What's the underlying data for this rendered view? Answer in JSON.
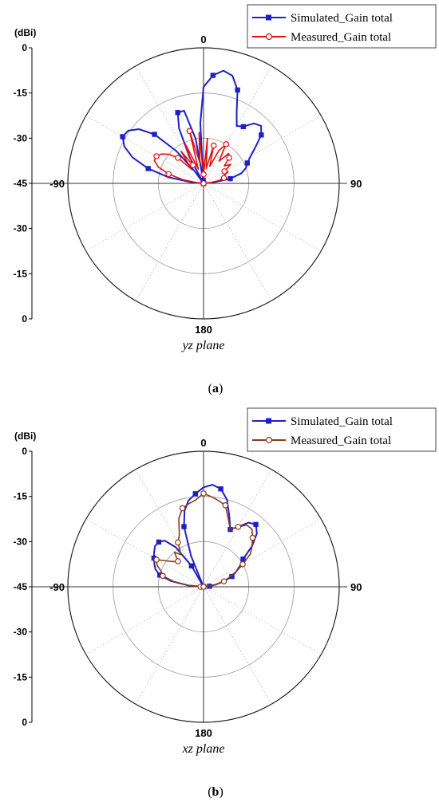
{
  "chart_data": [
    {
      "type": "polar",
      "panel_label": "a",
      "unit_label": "(dBi)",
      "plane_label": "yz plane",
      "radial_ticks": [
        "0",
        "-15",
        "-30",
        "-45"
      ],
      "radial_ticks_lower": [
        "-30",
        "-15",
        "0"
      ],
      "angle_labels": {
        "top": "0",
        "right": "90",
        "bottom": "180",
        "left": "-90"
      },
      "rlim": [
        -45,
        0
      ],
      "legend": {
        "position": "top-right"
      },
      "colors": {
        "simulated": "#1f1fc8",
        "measured": "#e01010"
      },
      "series": [
        {
          "name": "Simulated_Gain total",
          "marker": "square",
          "points": [
            {
              "angle": -90,
              "gain": -45
            },
            {
              "angle": -85,
              "gain": -41
            },
            {
              "angle": -80,
              "gain": -33
            },
            {
              "angle": -75,
              "gain": -26
            },
            {
              "angle": -70,
              "gain": -20
            },
            {
              "angle": -65,
              "gain": -16
            },
            {
              "angle": -60,
              "gain": -14
            },
            {
              "angle": -55,
              "gain": -14.5
            },
            {
              "angle": -50,
              "gain": -17
            },
            {
              "angle": -45,
              "gain": -22
            },
            {
              "angle": -40,
              "gain": -31
            },
            {
              "angle": -36,
              "gain": -40
            },
            {
              "angle": -33,
              "gain": -45
            },
            {
              "angle": -28,
              "gain": -35
            },
            {
              "angle": -24,
              "gain": -25
            },
            {
              "angle": -20,
              "gain": -20
            },
            {
              "angle": -15,
              "gain": -20
            },
            {
              "angle": -10,
              "gain": -30
            },
            {
              "angle": -6,
              "gain": -44
            },
            {
              "angle": -3,
              "gain": -25
            },
            {
              "angle": 0,
              "gain": -13
            },
            {
              "angle": 5,
              "gain": -9
            },
            {
              "angle": 10,
              "gain": -7
            },
            {
              "angle": 15,
              "gain": -8
            },
            {
              "angle": 20,
              "gain": -12
            },
            {
              "angle": 25,
              "gain": -19
            },
            {
              "angle": 30,
              "gain": -23
            },
            {
              "angle": 35,
              "gain": -22
            },
            {
              "angle": 40,
              "gain": -19
            },
            {
              "angle": 45,
              "gain": -18
            },
            {
              "angle": 50,
              "gain": -20
            },
            {
              "angle": 55,
              "gain": -24
            },
            {
              "angle": 60,
              "gain": -27
            },
            {
              "angle": 65,
              "gain": -29
            },
            {
              "angle": 70,
              "gain": -30
            },
            {
              "angle": 75,
              "gain": -32
            },
            {
              "angle": 80,
              "gain": -36
            },
            {
              "angle": 85,
              "gain": -42
            },
            {
              "angle": 90,
              "gain": -45
            }
          ]
        },
        {
          "name": "Measured_Gain total",
          "marker": "circle",
          "points": [
            {
              "angle": -90,
              "gain": -45
            },
            {
              "angle": -85,
              "gain": -43
            },
            {
              "angle": -80,
              "gain": -38
            },
            {
              "angle": -75,
              "gain": -33
            },
            {
              "angle": -70,
              "gain": -29
            },
            {
              "angle": -65,
              "gain": -27
            },
            {
              "angle": -60,
              "gain": -27
            },
            {
              "angle": -55,
              "gain": -28
            },
            {
              "angle": -50,
              "gain": -30
            },
            {
              "angle": -45,
              "gain": -33
            },
            {
              "angle": -40,
              "gain": -39
            },
            {
              "angle": -35,
              "gain": -32
            },
            {
              "angle": -30,
              "gain": -38
            },
            {
              "angle": -25,
              "gain": -30
            },
            {
              "angle": -20,
              "gain": -40
            },
            {
              "angle": -15,
              "gain": -27
            },
            {
              "angle": -10,
              "gain": -38
            },
            {
              "angle": -5,
              "gain": -28
            },
            {
              "angle": 0,
              "gain": -42
            },
            {
              "angle": 5,
              "gain": -30
            },
            {
              "angle": 10,
              "gain": -40
            },
            {
              "angle": 15,
              "gain": -32
            },
            {
              "angle": 20,
              "gain": -39
            },
            {
              "angle": 25,
              "gain": -33
            },
            {
              "angle": 30,
              "gain": -30
            },
            {
              "angle": 35,
              "gain": -36
            },
            {
              "angle": 40,
              "gain": -32
            },
            {
              "angle": 45,
              "gain": -33
            },
            {
              "angle": 50,
              "gain": -36
            },
            {
              "angle": 55,
              "gain": -34
            },
            {
              "angle": 60,
              "gain": -37
            },
            {
              "angle": 65,
              "gain": -36
            },
            {
              "angle": 70,
              "gain": -38
            },
            {
              "angle": 75,
              "gain": -38
            },
            {
              "angle": 80,
              "gain": -40
            },
            {
              "angle": 85,
              "gain": -43
            },
            {
              "angle": 90,
              "gain": -45
            }
          ]
        }
      ]
    },
    {
      "type": "polar",
      "panel_label": "b",
      "unit_label": "(dBi)",
      "plane_label": "xz plane",
      "radial_ticks": [
        "0",
        "-15",
        "-30",
        "-45"
      ],
      "radial_ticks_lower": [
        "-30",
        "-15",
        "0"
      ],
      "angle_labels": {
        "top": "0",
        "right": "90",
        "bottom": "180",
        "left": "-90"
      },
      "rlim": [
        -45,
        0
      ],
      "legend": {
        "position": "top-right"
      },
      "colors": {
        "simulated": "#1f1fc8",
        "measured": "#8b3a1a"
      },
      "series": [
        {
          "name": "Simulated_Gain total",
          "marker": "square",
          "points": [
            {
              "angle": -90,
              "gain": -45
            },
            {
              "angle": -85,
              "gain": -40
            },
            {
              "angle": -80,
              "gain": -34
            },
            {
              "angle": -75,
              "gain": -30
            },
            {
              "angle": -70,
              "gain": -28
            },
            {
              "angle": -65,
              "gain": -27
            },
            {
              "angle": -60,
              "gain": -26
            },
            {
              "angle": -55,
              "gain": -25
            },
            {
              "angle": -50,
              "gain": -24
            },
            {
              "angle": -45,
              "gain": -24
            },
            {
              "angle": -40,
              "gain": -25
            },
            {
              "angle": -35,
              "gain": -29
            },
            {
              "angle": -30,
              "gain": -37
            },
            {
              "angle": -27,
              "gain": -45
            },
            {
              "angle": -22,
              "gain": -34
            },
            {
              "angle": -18,
              "gain": -24
            },
            {
              "angle": -14,
              "gain": -19
            },
            {
              "angle": -10,
              "gain": -16
            },
            {
              "angle": -5,
              "gain": -14
            },
            {
              "angle": 0,
              "gain": -12
            },
            {
              "angle": 5,
              "gain": -11
            },
            {
              "angle": 10,
              "gain": -12
            },
            {
              "angle": 15,
              "gain": -15
            },
            {
              "angle": 20,
              "gain": -20
            },
            {
              "angle": 25,
              "gain": -24
            },
            {
              "angle": 30,
              "gain": -22
            },
            {
              "angle": 35,
              "gain": -19
            },
            {
              "angle": 40,
              "gain": -18
            },
            {
              "angle": 45,
              "gain": -20
            },
            {
              "angle": 50,
              "gain": -24
            },
            {
              "angle": 55,
              "gain": -29
            },
            {
              "angle": 60,
              "gain": -31
            },
            {
              "angle": 65,
              "gain": -33
            },
            {
              "angle": 70,
              "gain": -35
            },
            {
              "angle": 75,
              "gain": -38
            },
            {
              "angle": 80,
              "gain": -41
            },
            {
              "angle": 85,
              "gain": -43
            },
            {
              "angle": 90,
              "gain": -45
            }
          ]
        },
        {
          "name": "Measured_Gain total",
          "marker": "circle",
          "points": [
            {
              "angle": -90,
              "gain": -44
            },
            {
              "angle": -85,
              "gain": -40
            },
            {
              "angle": -80,
              "gain": -35
            },
            {
              "angle": -75,
              "gain": -31
            },
            {
              "angle": -70,
              "gain": -30
            },
            {
              "angle": -65,
              "gain": -28
            },
            {
              "angle": -60,
              "gain": -27
            },
            {
              "angle": -55,
              "gain": -30
            },
            {
              "angle": -50,
              "gain": -32
            },
            {
              "angle": -45,
              "gain": -33
            },
            {
              "angle": -40,
              "gain": -30
            },
            {
              "angle": -35,
              "gain": -32
            },
            {
              "angle": -30,
              "gain": -28
            },
            {
              "angle": -25,
              "gain": -26
            },
            {
              "angle": -20,
              "gain": -21
            },
            {
              "angle": -15,
              "gain": -18
            },
            {
              "angle": -10,
              "gain": -17
            },
            {
              "angle": -5,
              "gain": -16
            },
            {
              "angle": 0,
              "gain": -14
            },
            {
              "angle": 5,
              "gain": -15
            },
            {
              "angle": 10,
              "gain": -16
            },
            {
              "angle": 15,
              "gain": -17
            },
            {
              "angle": 20,
              "gain": -21
            },
            {
              "angle": 25,
              "gain": -24
            },
            {
              "angle": 30,
              "gain": -22
            },
            {
              "angle": 35,
              "gain": -20
            },
            {
              "angle": 40,
              "gain": -20
            },
            {
              "angle": 45,
              "gain": -22
            },
            {
              "angle": 50,
              "gain": -24
            },
            {
              "angle": 55,
              "gain": -26
            },
            {
              "angle": 60,
              "gain": -30
            },
            {
              "angle": 65,
              "gain": -33
            },
            {
              "angle": 70,
              "gain": -36
            },
            {
              "angle": 75,
              "gain": -38
            },
            {
              "angle": 80,
              "gain": -41
            },
            {
              "angle": 85,
              "gain": -43
            },
            {
              "angle": 90,
              "gain": -45
            }
          ]
        }
      ]
    }
  ]
}
